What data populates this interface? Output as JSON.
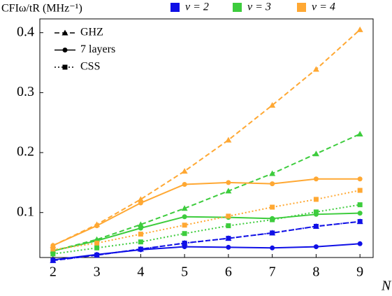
{
  "chart_data": {
    "type": "line",
    "y_label": "CFIω/tR (MHz⁻¹)",
    "x_label": "N",
    "x": [
      2,
      3,
      4,
      5,
      6,
      7,
      8,
      9
    ],
    "xlim": [
      1.7,
      9.3
    ],
    "xticks": [
      2,
      3,
      4,
      5,
      6,
      7,
      8,
      9
    ],
    "ylim": [
      0.025,
      0.423
    ],
    "yticks": [
      0.1,
      0.2,
      0.3,
      0.4
    ],
    "color_legend": [
      {
        "label": "ν = 2",
        "color": "#1010e6"
      },
      {
        "label": "ν = 3",
        "color": "#3dcc3d"
      },
      {
        "label": "ν = 4",
        "color": "#ffa833"
      }
    ],
    "style_legend": [
      {
        "label": "GHZ",
        "style": "dashed",
        "marker": "triangle"
      },
      {
        "label": "7 layers",
        "style": "solid",
        "marker": "circle"
      },
      {
        "label": "CSS",
        "style": "dotted",
        "marker": "square"
      }
    ],
    "series": [
      {
        "color": "#ffa833",
        "style": "dashed",
        "marker": "triangle",
        "values": [
          0.045,
          0.08,
          0.122,
          0.169,
          0.221,
          0.279,
          0.339,
          0.405
        ]
      },
      {
        "color": "#3dcc3d",
        "style": "dashed",
        "marker": "triangle",
        "values": [
          0.036,
          0.055,
          0.08,
          0.107,
          0.136,
          0.165,
          0.198,
          0.231
        ]
      },
      {
        "color": "#1010e6",
        "style": "dashed",
        "marker": "triangle",
        "values": [
          0.02,
          0.029,
          0.039,
          0.049,
          0.057,
          0.066,
          0.077,
          0.085
        ]
      },
      {
        "color": "#ffa833",
        "style": "solid",
        "marker": "circle",
        "values": [
          0.045,
          0.078,
          0.116,
          0.147,
          0.15,
          0.148,
          0.156,
          0.156
        ]
      },
      {
        "color": "#3dcc3d",
        "style": "solid",
        "marker": "circle",
        "values": [
          0.036,
          0.053,
          0.074,
          0.093,
          0.092,
          0.09,
          0.097,
          0.099
        ]
      },
      {
        "color": "#1010e6",
        "style": "solid",
        "marker": "circle",
        "values": [
          0.021,
          0.03,
          0.038,
          0.043,
          0.042,
          0.041,
          0.043,
          0.048
        ]
      },
      {
        "color": "#ffa833",
        "style": "dotted",
        "marker": "square",
        "values": [
          0.038,
          0.049,
          0.064,
          0.079,
          0.094,
          0.109,
          0.122,
          0.137
        ]
      },
      {
        "color": "#3dcc3d",
        "style": "dotted",
        "marker": "square",
        "values": [
          0.031,
          0.041,
          0.051,
          0.065,
          0.078,
          0.088,
          0.101,
          0.113
        ]
      },
      {
        "color": "#1010e6",
        "style": "dotted",
        "marker": "square",
        "values": [
          0.02,
          0.029,
          0.039,
          0.049,
          0.057,
          0.066,
          0.077,
          0.085
        ]
      }
    ]
  }
}
